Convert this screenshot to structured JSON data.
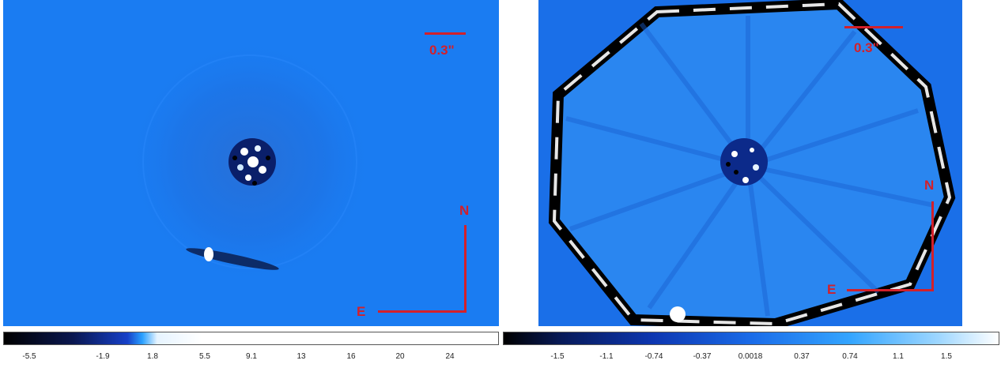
{
  "left_panel": {
    "scale_label": "0.3\"",
    "north_label": "N",
    "east_label": "E",
    "colorbar_ticks": [
      "-5.5",
      "-1.9",
      "1.8",
      "5.5",
      "9.1",
      "13",
      "16",
      "20",
      "24"
    ]
  },
  "right_panel": {
    "scale_label": "0.3\"",
    "north_label": "N",
    "east_label": "E",
    "colorbar_ticks": [
      "-1.5",
      "-1.1",
      "-0.74",
      "-0.37",
      "0.0018",
      "0.37",
      "0.74",
      "1.1",
      "1.5"
    ]
  },
  "colors": {
    "annotation_red": "#d3202a",
    "background_blue": "#1a7cf2"
  }
}
